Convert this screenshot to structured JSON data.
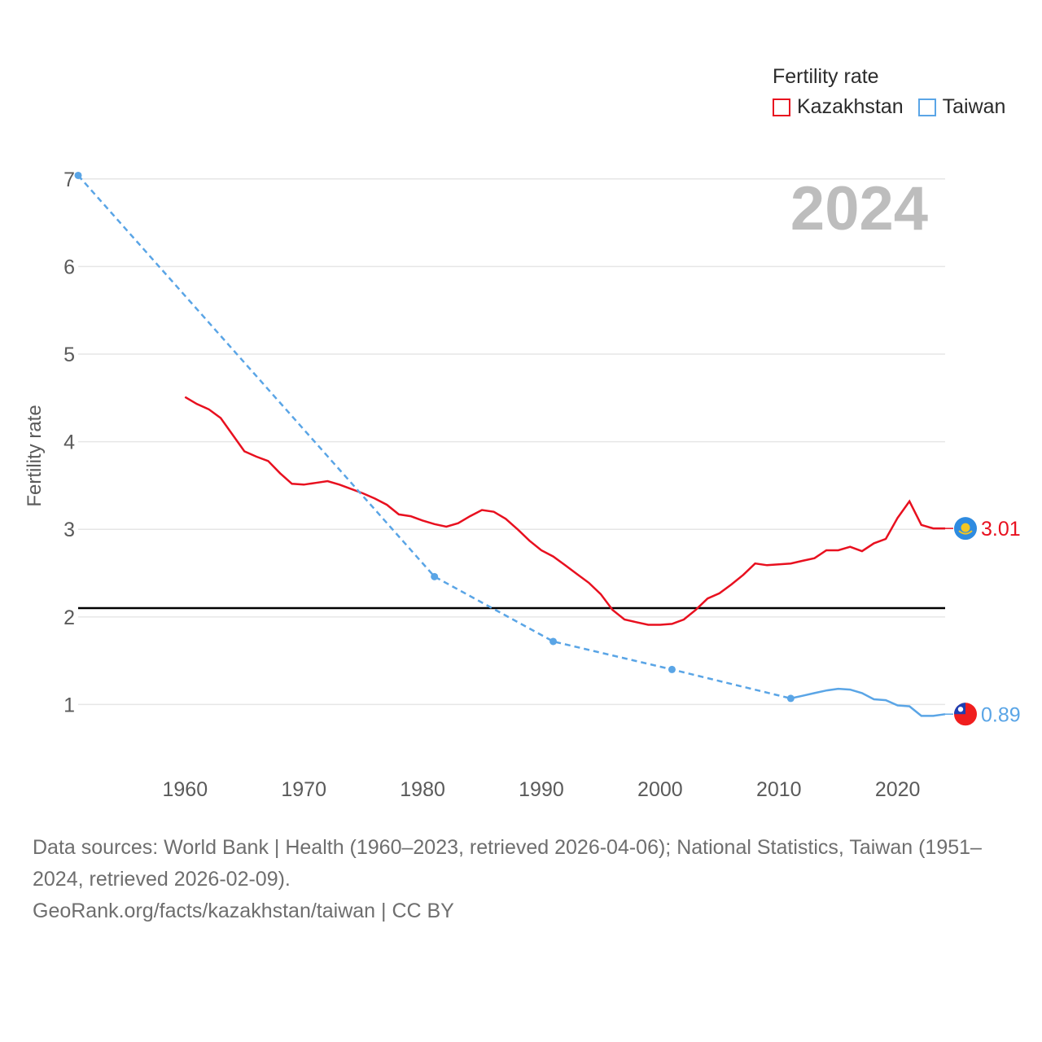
{
  "legend": {
    "title": "Fertility rate",
    "items": [
      {
        "label": "Kazakhstan",
        "color": "#e8101f"
      },
      {
        "label": "Taiwan",
        "color": "#5aa5e6"
      }
    ]
  },
  "year_label": "2024",
  "footer": {
    "sources": "Data sources: World Bank | Health (1960–2023, retrieved 2026-04-06); National Statistics, Taiwan (1951–2024, retrieved 2026-02-09).",
    "credit": "GeoRank.org/facts/kazakhstan/taiwan | CC BY"
  },
  "chart_data": {
    "type": "line",
    "title": "",
    "xlabel": "",
    "ylabel": "Fertility rate",
    "xlim": [
      1951,
      2024
    ],
    "ylim": [
      0.4,
      7.1
    ],
    "x_ticks": [
      1960,
      1970,
      1980,
      1990,
      2000,
      2010,
      2020
    ],
    "y_ticks": [
      1,
      2,
      3,
      4,
      5,
      6,
      7
    ],
    "reference_line": {
      "y": 2.1,
      "color": "#000000"
    },
    "series": [
      {
        "name": "Kazakhstan",
        "color": "#e8101f",
        "end_label": "3.01",
        "x": [
          1960,
          1961,
          1962,
          1963,
          1964,
          1965,
          1966,
          1967,
          1968,
          1969,
          1970,
          1971,
          1972,
          1973,
          1974,
          1975,
          1976,
          1977,
          1978,
          1979,
          1980,
          1981,
          1982,
          1983,
          1984,
          1985,
          1986,
          1987,
          1988,
          1989,
          1990,
          1991,
          1992,
          1993,
          1994,
          1995,
          1996,
          1997,
          1998,
          1999,
          2000,
          2001,
          2002,
          2003,
          2004,
          2005,
          2006,
          2007,
          2008,
          2009,
          2010,
          2011,
          2012,
          2013,
          2014,
          2015,
          2016,
          2017,
          2018,
          2019,
          2020,
          2021,
          2022,
          2023,
          2024
        ],
        "values": [
          4.51,
          4.43,
          4.37,
          4.27,
          4.08,
          3.89,
          3.83,
          3.78,
          3.64,
          3.52,
          3.51,
          3.53,
          3.55,
          3.51,
          3.46,
          3.41,
          3.35,
          3.28,
          3.17,
          3.15,
          3.1,
          3.06,
          3.03,
          3.07,
          3.15,
          3.22,
          3.2,
          3.12,
          3.0,
          2.87,
          2.76,
          2.69,
          2.59,
          2.49,
          2.39,
          2.26,
          2.08,
          1.97,
          1.94,
          1.91,
          1.91,
          1.92,
          1.97,
          2.08,
          2.21,
          2.27,
          2.37,
          2.48,
          2.61,
          2.59,
          2.6,
          2.61,
          2.64,
          2.67,
          2.76,
          2.76,
          2.8,
          2.75,
          2.84,
          2.89,
          3.13,
          3.32,
          3.05,
          3.01,
          3.01
        ]
      },
      {
        "name": "Taiwan",
        "color": "#5aa5e6",
        "end_label": "0.89",
        "dashed_to_year": 2011,
        "markers": [
          1951,
          1981,
          1991,
          2001,
          2011
        ],
        "x": [
          1951,
          1981,
          1991,
          2001,
          2011,
          2012,
          2013,
          2014,
          2015,
          2016,
          2017,
          2018,
          2019,
          2020,
          2021,
          2022,
          2023,
          2024
        ],
        "values": [
          7.04,
          2.46,
          1.72,
          1.4,
          1.07,
          1.1,
          1.13,
          1.16,
          1.18,
          1.17,
          1.13,
          1.06,
          1.05,
          0.99,
          0.98,
          0.87,
          0.87,
          0.89
        ]
      }
    ]
  }
}
